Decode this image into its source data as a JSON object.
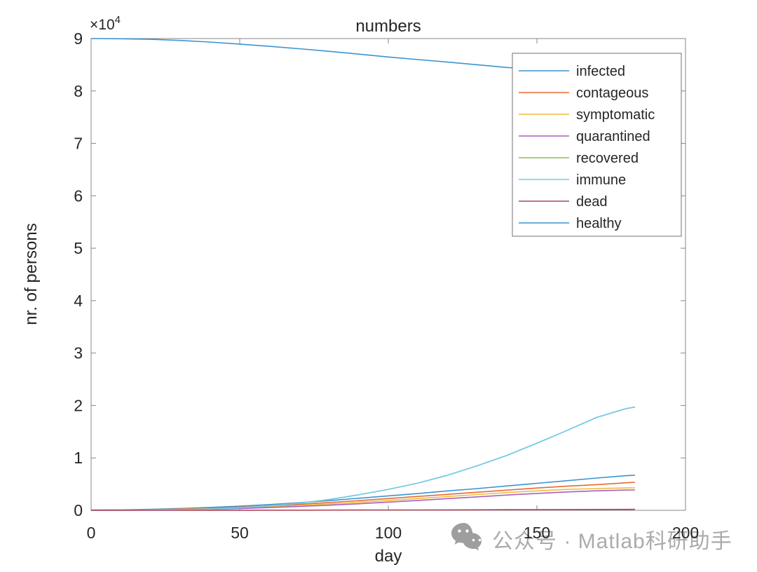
{
  "figure": {
    "background": "#ffffff",
    "text_color": "#262626",
    "axis_color": "#878787"
  },
  "watermark": {
    "icon": "wechat-icon",
    "text": "公众号 · Matlab科研助手",
    "color": "#ababab"
  },
  "chart_data": {
    "type": "line",
    "title": "numbers",
    "xlabel": "day",
    "ylabel": "nr. of persons",
    "y_offset_base": "×10",
    "y_offset_exp": "4",
    "xlim": [
      0,
      200
    ],
    "ylim": [
      0,
      90000
    ],
    "xticks": [
      0,
      50,
      100,
      150,
      200
    ],
    "xtick_labels": [
      "0",
      "50",
      "100",
      "150",
      "200"
    ],
    "yticks": [
      0,
      10000,
      20000,
      30000,
      40000,
      50000,
      60000,
      70000,
      80000,
      90000
    ],
    "ytick_labels": [
      "0",
      "1",
      "2",
      "3",
      "4",
      "5",
      "6",
      "7",
      "8",
      "9"
    ],
    "grid": false,
    "legend_position": "top-right-inside",
    "x": [
      0,
      10,
      20,
      30,
      40,
      50,
      60,
      70,
      80,
      90,
      100,
      110,
      120,
      130,
      140,
      150,
      160,
      170,
      180,
      183
    ],
    "series": [
      {
        "name": "infected",
        "color": "#3B94D1",
        "values": [
          50,
          100,
          200,
          350,
          550,
          800,
          1100,
          1450,
          1850,
          2300,
          2750,
          3200,
          3700,
          4150,
          4650,
          5150,
          5650,
          6150,
          6600,
          6700
        ]
      },
      {
        "name": "contageous",
        "color": "#E66A33",
        "values": [
          30,
          70,
          140,
          250,
          400,
          600,
          850,
          1150,
          1480,
          1850,
          2250,
          2650,
          3050,
          3450,
          3850,
          4250,
          4600,
          4900,
          5250,
          5350
        ]
      },
      {
        "name": "symptomatic",
        "color": "#EFBC3A",
        "values": [
          20,
          50,
          100,
          180,
          300,
          460,
          670,
          920,
          1200,
          1530,
          1880,
          2250,
          2630,
          3010,
          3380,
          3700,
          3980,
          4150,
          4260,
          4280
        ]
      },
      {
        "name": "quarantined",
        "color": "#A85FC0",
        "values": [
          10,
          30,
          70,
          130,
          220,
          350,
          520,
          730,
          970,
          1250,
          1560,
          1890,
          2230,
          2570,
          2910,
          3220,
          3500,
          3720,
          3860,
          3880
        ]
      },
      {
        "name": "recovered",
        "color": "#8FBE4D",
        "values": [
          0,
          10,
          40,
          110,
          250,
          500,
          850,
          1350,
          2050,
          2950,
          4000,
          5200,
          6700,
          8500,
          10500,
          12800,
          15200,
          17700,
          19400,
          19700
        ]
      },
      {
        "name": "immune",
        "color": "#6FCBF0",
        "values": [
          0,
          10,
          40,
          110,
          250,
          500,
          850,
          1350,
          2050,
          2950,
          4000,
          5200,
          6700,
          8500,
          10500,
          12800,
          15200,
          17700,
          19400,
          19700
        ]
      },
      {
        "name": "dead",
        "color": "#B2455C",
        "values": [
          0,
          1,
          3,
          6,
          10,
          16,
          23,
          31,
          40,
          50,
          61,
          73,
          86,
          100,
          115,
          130,
          146,
          163,
          180,
          185
        ]
      },
      {
        "name": "healthy",
        "color": "#3B94D1",
        "values": [
          90000,
          89960,
          89850,
          89640,
          89330,
          88950,
          88520,
          88060,
          87560,
          87030,
          86480,
          85990,
          85500,
          85000,
          84480,
          84200,
          83950,
          83750,
          83550,
          83500
        ]
      }
    ]
  }
}
